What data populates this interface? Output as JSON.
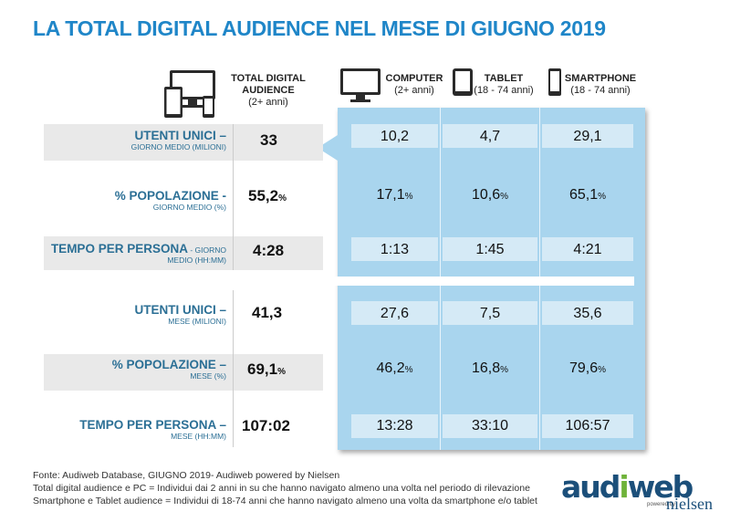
{
  "title": "LA TOTAL DIGITAL AUDIENCE NEL MESE DI GIUGNO 2019",
  "columns": [
    {
      "name": "TOTAL DIGITAL AUDIENCE",
      "sub": "(2+ anni)"
    },
    {
      "name": "COMPUTER",
      "sub": "(2+ anni)"
    },
    {
      "name": "TABLET",
      "sub": "(18 - 74 anni)"
    },
    {
      "name": "SMARTPHONE",
      "sub": "(18 - 74 anni)"
    }
  ],
  "rows": [
    {
      "main": "UTENTI UNICI –",
      "sub": "GIORNO MEDIO (MILIONI)",
      "total": "33",
      "total_unit": "",
      "computer": "10,2",
      "computer_unit": "",
      "tablet": "4,7",
      "tablet_unit": "",
      "smartphone": "29,1",
      "smartphone_unit": ""
    },
    {
      "main": "% POPOLAZIONE -",
      "sub": "GIORNO MEDIO (%)",
      "total": "55,2",
      "total_unit": "%",
      "computer": "17,1",
      "computer_unit": "%",
      "tablet": "10,6",
      "tablet_unit": "%",
      "smartphone": "65,1",
      "smartphone_unit": "%"
    },
    {
      "main": "TEMPO PER PERSONA",
      "main_inline": " - GIORNO",
      "sub": "MEDIO (HH:MM)",
      "total": "4:28",
      "total_unit": "",
      "computer": "1:13",
      "computer_unit": "",
      "tablet": "1:45",
      "tablet_unit": "",
      "smartphone": "4:21",
      "smartphone_unit": ""
    },
    {
      "main": "UTENTI UNICI –",
      "sub": "MESE (MILIONI)",
      "total": "41,3",
      "total_unit": "",
      "computer": "27,6",
      "computer_unit": "",
      "tablet": "7,5",
      "tablet_unit": "",
      "smartphone": "35,6",
      "smartphone_unit": ""
    },
    {
      "main": "% POPOLAZIONE –",
      "sub": "MESE (%)",
      "total": "69,1",
      "total_unit": "%",
      "computer": "46,2",
      "computer_unit": "%",
      "tablet": "16,8",
      "tablet_unit": "%",
      "smartphone": "79,6",
      "smartphone_unit": "%"
    },
    {
      "main": "TEMPO PER PERSONA –",
      "sub": "MESE (HH:MM)",
      "total": "107:02",
      "total_unit": "",
      "computer": "13:28",
      "computer_unit": "",
      "tablet": "33:10",
      "tablet_unit": "",
      "smartphone": "106:57",
      "smartphone_unit": ""
    }
  ],
  "footer": [
    "Fonte: Audiweb Database, GIUGNO 2019- Audiweb powered by Nielsen",
    "Total digital audience e PC = Individui dai 2 anni in su che hanno navigato almeno una volta nel periodo di rilevazione",
    "Smartphone e Tablet audience = Individui di 18-74 anni che hanno navigato almeno una volta da smartphone e/o tablet"
  ],
  "logo": {
    "brand_a": "aud",
    "brand_b": "i",
    "brand_c": "web",
    "powered": "powered by",
    "partner": "nielsen"
  },
  "colors": {
    "title": "#1f86c8",
    "label": "#2b6f95",
    "panel": "#a9d5ee",
    "cell": "#d5eaf6",
    "row": "#e9e9e9"
  },
  "icons": [
    "devices-icon",
    "computer-icon",
    "tablet-icon",
    "smartphone-icon"
  ]
}
